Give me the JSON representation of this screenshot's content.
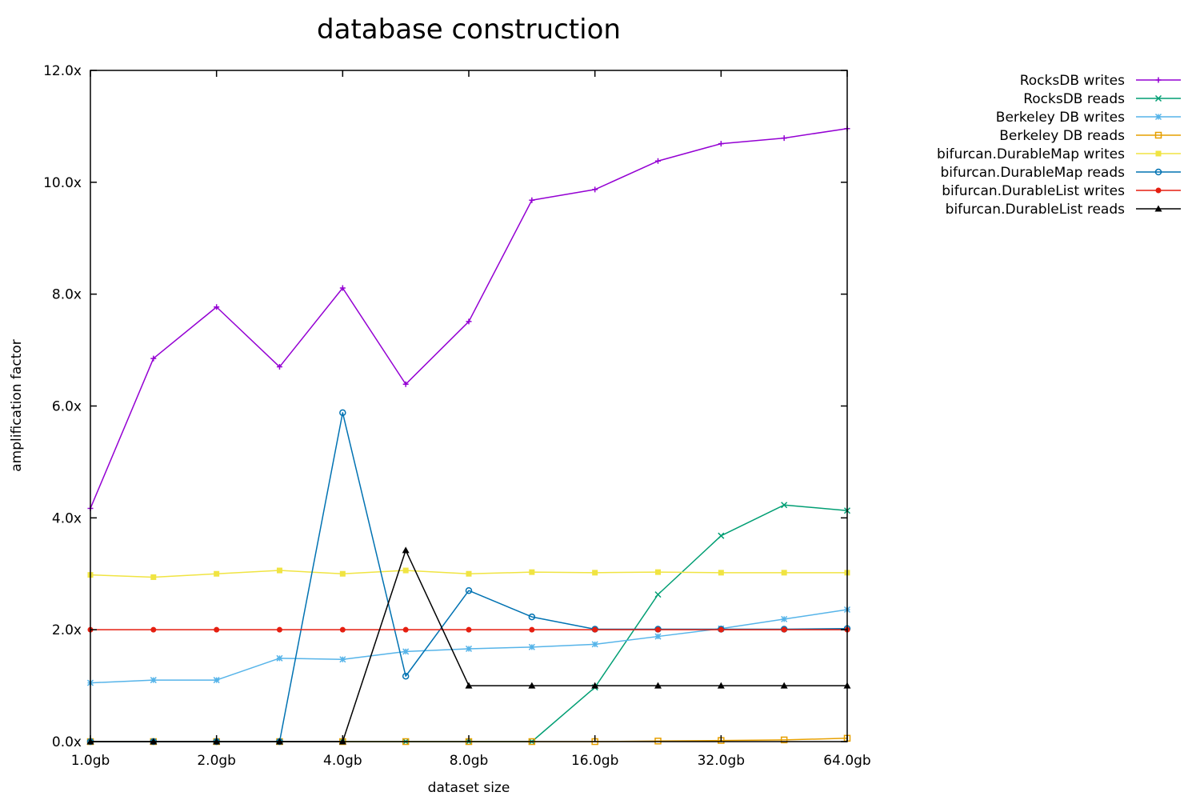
{
  "chart_data": {
    "type": "line",
    "title": "database construction",
    "xlabel": "dataset size",
    "ylabel": "amplification factor",
    "x_scale": "log2",
    "x": [
      1.0,
      1.414,
      2.0,
      2.828,
      4.0,
      5.657,
      8.0,
      11.314,
      16.0,
      22.627,
      32.0,
      45.255,
      64.0
    ],
    "xlim": [
      1.0,
      64.0
    ],
    "ylim": [
      0.0,
      12.0
    ],
    "x_ticks": [
      {
        "value": 1.0,
        "label": "1.0gb"
      },
      {
        "value": 2.0,
        "label": "2.0gb"
      },
      {
        "value": 4.0,
        "label": "4.0gb"
      },
      {
        "value": 8.0,
        "label": "8.0gb"
      },
      {
        "value": 16.0,
        "label": "16.0gb"
      },
      {
        "value": 32.0,
        "label": "32.0gb"
      },
      {
        "value": 64.0,
        "label": "64.0gb"
      }
    ],
    "y_ticks": [
      {
        "value": 0.0,
        "label": "0.0x"
      },
      {
        "value": 2.0,
        "label": "2.0x"
      },
      {
        "value": 4.0,
        "label": "4.0x"
      },
      {
        "value": 6.0,
        "label": "6.0x"
      },
      {
        "value": 8.0,
        "label": "8.0x"
      },
      {
        "value": 10.0,
        "label": "10.0x"
      },
      {
        "value": 12.0,
        "label": "12.0x"
      }
    ],
    "grid": false,
    "legend_position": "top-right, outside plot",
    "series": [
      {
        "name": "RocksDB writes",
        "color": "#9400d3",
        "marker": "plus",
        "values": [
          4.17,
          6.85,
          7.77,
          6.7,
          8.11,
          6.39,
          7.51,
          9.68,
          9.87,
          10.38,
          10.69,
          10.79,
          10.96
        ]
      },
      {
        "name": "RocksDB reads",
        "color": "#009e73",
        "marker": "cross",
        "values": [
          0.0,
          0.0,
          0.0,
          0.0,
          0.0,
          0.0,
          0.0,
          0.0,
          0.97,
          2.63,
          3.68,
          4.23,
          4.13
        ]
      },
      {
        "name": "Berkeley DB writes",
        "color": "#56b4e9",
        "marker": "star",
        "values": [
          1.05,
          1.1,
          1.1,
          1.49,
          1.47,
          1.61,
          1.66,
          1.69,
          1.74,
          1.88,
          2.02,
          2.19,
          2.36
        ]
      },
      {
        "name": "Berkeley DB reads",
        "color": "#e69f00",
        "marker": "open-square",
        "values": [
          0.0,
          0.0,
          0.0,
          0.0,
          0.0,
          0.0,
          0.0,
          0.0,
          0.0,
          0.01,
          0.02,
          0.03,
          0.06
        ]
      },
      {
        "name": "bifurcan.DurableMap writes",
        "color": "#f0e442",
        "marker": "filled-square",
        "values": [
          2.98,
          2.94,
          3.0,
          3.06,
          3.0,
          3.06,
          3.0,
          3.03,
          3.02,
          3.03,
          3.02,
          3.02,
          3.02
        ]
      },
      {
        "name": "bifurcan.DurableMap reads",
        "color": "#0072b2",
        "marker": "open-circle",
        "values": [
          0.0,
          0.0,
          0.0,
          0.0,
          5.88,
          1.17,
          2.7,
          2.23,
          2.01,
          2.01,
          2.01,
          2.01,
          2.02
        ]
      },
      {
        "name": "bifurcan.DurableList writes",
        "color": "#e51e10",
        "marker": "filled-circle",
        "values": [
          2.0,
          2.0,
          2.0,
          2.0,
          2.0,
          2.0,
          2.0,
          2.0,
          2.0,
          2.0,
          2.0,
          2.0,
          2.0
        ]
      },
      {
        "name": "bifurcan.DurableList reads",
        "color": "#000000",
        "marker": "filled-triangle",
        "values": [
          0.0,
          0.0,
          0.0,
          0.0,
          0.0,
          3.42,
          1.0,
          1.0,
          1.0,
          1.0,
          1.0,
          1.0,
          1.0
        ]
      }
    ]
  }
}
